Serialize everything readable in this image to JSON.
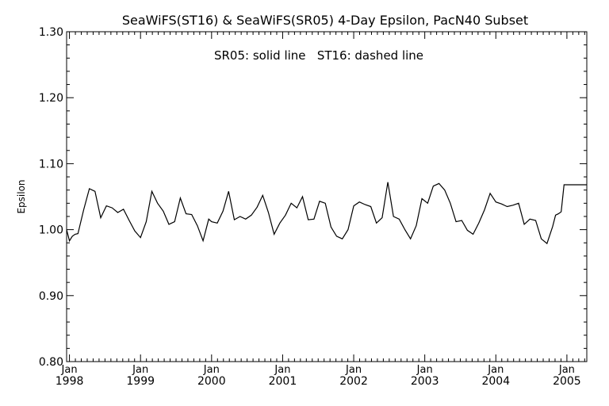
{
  "chart_data": {
    "type": "line",
    "title": "SeaWiFS(ST16) & SeaWiFS(SR05) 4-Day Epsilon, PacN40 Subset",
    "annotation": "SR05: solid line   ST16: dashed line",
    "ylabel": "Epsilon",
    "xlabel": "",
    "ylim": [
      0.8,
      1.3
    ],
    "y_ticks": [
      "0.80",
      "0.90",
      "1.00",
      "1.10",
      "1.20",
      "1.30"
    ],
    "x_ticks": [
      {
        "month": "Jan",
        "year": "1998",
        "value": 1998.0
      },
      {
        "month": "Jan",
        "year": "1999",
        "value": 1999.0
      },
      {
        "month": "Jan",
        "year": "2000",
        "value": 2000.0
      },
      {
        "month": "Jan",
        "year": "2001",
        "value": 2001.0
      },
      {
        "month": "Jan",
        "year": "2002",
        "value": 2002.0
      },
      {
        "month": "Jan",
        "year": "2003",
        "value": 2003.0
      },
      {
        "month": "Jan",
        "year": "2004",
        "value": 2004.0
      },
      {
        "month": "Jan",
        "year": "2005",
        "value": 2005.0
      }
    ],
    "xlim": [
      1997.96,
      2005.28
    ],
    "grid": false,
    "series": [
      {
        "style": "solid",
        "x": [
          1997.96,
          1998.0,
          1998.04,
          1998.08,
          1998.12,
          1998.2,
          1998.28,
          1998.36,
          1998.44,
          1998.52,
          1998.6,
          1998.68,
          1998.76,
          1998.84,
          1998.92,
          1999.0,
          1999.08,
          1999.16,
          1999.24,
          1999.32,
          1999.4,
          1999.48,
          1999.56,
          1999.64,
          1999.72,
          1999.8,
          1999.88,
          1999.96,
          2000.0,
          2000.08,
          2000.16,
          2000.24,
          2000.32,
          2000.4,
          2000.48,
          2000.56,
          2000.64,
          2000.72,
          2000.8,
          2000.88,
          2000.96,
          2001.04,
          2001.12,
          2001.2,
          2001.28,
          2001.36,
          2001.44,
          2001.52,
          2001.6,
          2001.68,
          2001.76,
          2001.84,
          2001.92,
          2002.0,
          2002.08,
          2002.16,
          2002.24,
          2002.32,
          2002.4,
          2002.48,
          2002.56,
          2002.64,
          2002.72,
          2002.8,
          2002.88,
          2002.96,
          2003.04,
          2003.12,
          2003.2,
          2003.28,
          2003.36,
          2003.44,
          2003.52,
          2003.6,
          2003.68,
          2003.76,
          2003.84,
          2003.92,
          2004.0,
          2004.08,
          2004.16,
          2004.24,
          2004.32,
          2004.4,
          2004.48,
          2004.56,
          2004.64,
          2004.72,
          2004.8,
          2004.84,
          2004.88,
          2004.92,
          2004.96,
          2005.0,
          2005.04,
          2005.08,
          2005.12,
          2005.16,
          2005.2,
          2005.28
        ],
        "y": [
          1.0,
          0.983,
          0.99,
          0.993,
          0.994,
          1.03,
          1.062,
          1.058,
          1.018,
          1.036,
          1.033,
          1.026,
          1.031,
          1.014,
          0.998,
          0.988,
          1.012,
          1.058,
          1.04,
          1.028,
          1.008,
          1.012,
          1.048,
          1.024,
          1.023,
          1.006,
          0.983,
          1.016,
          1.012,
          1.01,
          1.028,
          1.058,
          1.015,
          1.02,
          1.016,
          1.022,
          1.034,
          1.052,
          1.026,
          0.993,
          1.01,
          1.022,
          1.04,
          1.033,
          1.05,
          1.015,
          1.016,
          1.043,
          1.04,
          1.004,
          0.99,
          0.986,
          1.0,
          1.036,
          1.042,
          1.038,
          1.035,
          1.01,
          1.018,
          1.072,
          1.02,
          1.016,
          1.0,
          0.986,
          1.006,
          1.047,
          1.04,
          1.066,
          1.07,
          1.06,
          1.04,
          1.012,
          1.014,
          0.999,
          0.993,
          1.01,
          1.03,
          1.055,
          1.042,
          1.039,
          1.035,
          1.037,
          1.04,
          1.008,
          1.016,
          1.014,
          0.986,
          0.979,
          1.005,
          1.022,
          1.024,
          1.027,
          1.068,
          1.068,
          1.068,
          1.068,
          1.068,
          1.068,
          1.068,
          1.068
        ]
      }
    ]
  }
}
